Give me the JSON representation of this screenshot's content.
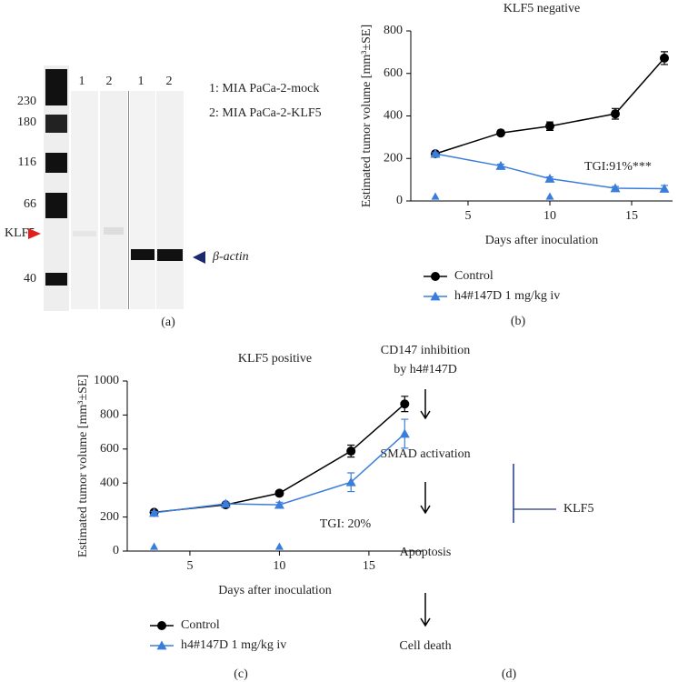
{
  "chart_data": [
    {
      "type": "line",
      "title": "KLF5 negative",
      "panel_label": "(b)",
      "x_label": "Days after inoculation",
      "y_label": "Estimated tumor volume [mm³±SE]",
      "x": [
        3,
        7,
        10,
        14,
        17
      ],
      "series": [
        {
          "name": "Control",
          "color": "#000000",
          "marker": "circle",
          "values": [
            222,
            320,
            352,
            410,
            672
          ],
          "errors": [
            10,
            10,
            20,
            25,
            30
          ]
        },
        {
          "name": "h4#147D 1 mg/kg iv",
          "color": "#3b7ddd",
          "marker": "triangle",
          "values": [
            222,
            165,
            105,
            60,
            58
          ],
          "errors": [
            5,
            8,
            8,
            8,
            15
          ]
        }
      ],
      "dose_days": [
        3,
        10
      ],
      "dose_color": "#3b7ddd",
      "annotation": "TGI:91%***",
      "xlim": [
        1.5,
        17.5
      ],
      "xticks": [
        5,
        10,
        15
      ],
      "ylim": [
        0,
        800
      ],
      "yticks": [
        0,
        200,
        400,
        600,
        800
      ]
    },
    {
      "type": "line",
      "title": "KLF5 positive",
      "panel_label": "(c)",
      "x_label": "Days after inoculation",
      "y_label": "Estimated tumor volume [mm³±SE]",
      "x": [
        3,
        7,
        10,
        14,
        17
      ],
      "series": [
        {
          "name": "Control",
          "color": "#000000",
          "marker": "circle",
          "values": [
            228,
            272,
            340,
            588,
            865
          ],
          "errors": [
            10,
            10,
            15,
            35,
            45
          ]
        },
        {
          "name": "h4#147D 1 mg/kg iv",
          "color": "#3b7ddd",
          "marker": "triangle",
          "values": [
            225,
            278,
            272,
            405,
            690
          ],
          "errors": [
            8,
            10,
            15,
            55,
            85
          ]
        }
      ],
      "dose_days": [
        3,
        10
      ],
      "dose_color": "#3b7ddd",
      "annotation": "TGI: 20%",
      "xlim": [
        1.5,
        18
      ],
      "xticks": [
        5,
        10,
        15
      ],
      "ylim": [
        0,
        1000
      ],
      "yticks": [
        0,
        200,
        400,
        600,
        800,
        1000
      ]
    }
  ],
  "blot": {
    "markers": [
      "230",
      "180",
      "116",
      "66",
      "40"
    ],
    "target": "KLF5",
    "lanes": [
      "1",
      "2",
      "1",
      "2"
    ],
    "key": [
      "1: MIA PaCa-2-mock",
      "2: MIA PaCa-2-KLF5"
    ],
    "control": "β-actin",
    "panel_label": "(a)"
  },
  "diagram": {
    "lines": [
      "CD147 inhibition",
      "by h4#147D",
      "SMAD activation",
      "Apoptosis",
      "Cell death"
    ],
    "inhibitor": "KLF5",
    "panel_label": "(d)"
  }
}
